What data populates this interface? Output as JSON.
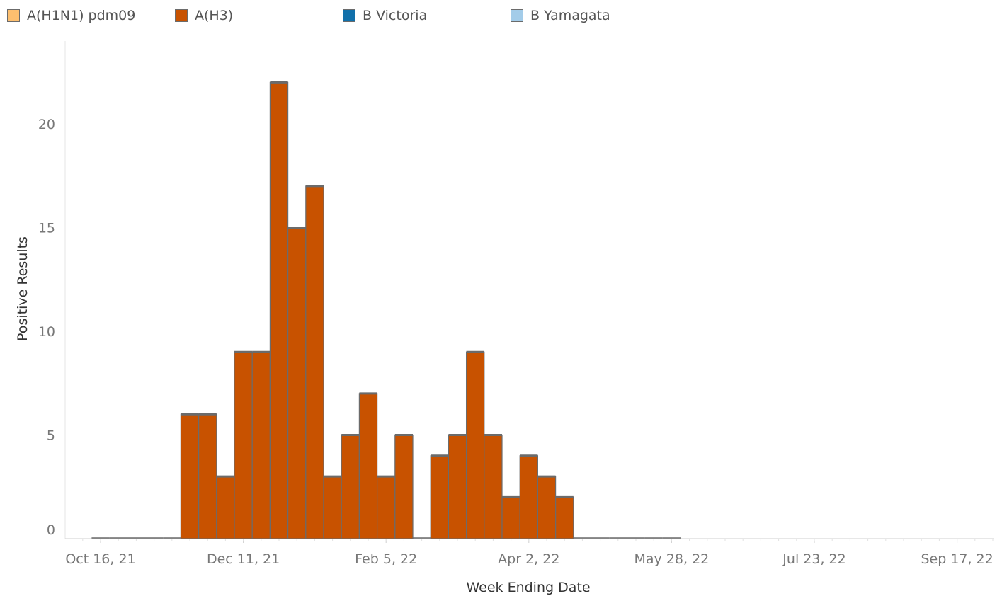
{
  "legend": [
    {
      "label": "A(H1N1) pdm09",
      "color": "#fdbf6f"
    },
    {
      "label": "A(H3)",
      "color": "#c85200"
    },
    {
      "label": "B Victoria",
      "color": "#1170aa"
    },
    {
      "label": "B Yamagata",
      "color": "#a3cce9"
    }
  ],
  "chart_data": {
    "type": "bar",
    "stacked": true,
    "xlabel": "Week Ending Date",
    "ylabel": "Positive Results",
    "ylim": [
      0,
      24
    ],
    "y_ticks": [
      0,
      5,
      10,
      15,
      20
    ],
    "x_tick_labels": [
      "Oct 16, 21",
      "Dec 11, 21",
      "Feb 5, 22",
      "Apr 2, 22",
      "May 28, 22",
      "Jul 23, 22",
      "Sep 17, 22"
    ],
    "x_ticks": [
      "2021-10-16",
      "2021-12-11",
      "2022-02-05",
      "2022-04-02",
      "2022-05-28",
      "2022-07-23",
      "2022-09-17"
    ],
    "x": [
      "2021-10-16",
      "2021-10-23",
      "2021-10-30",
      "2021-11-06",
      "2021-11-13",
      "2021-11-20",
      "2021-11-27",
      "2021-12-04",
      "2021-12-11",
      "2021-12-18",
      "2021-12-25",
      "2022-01-01",
      "2022-01-08",
      "2022-01-15",
      "2022-01-22",
      "2022-01-29",
      "2022-02-05",
      "2022-02-12",
      "2022-02-19",
      "2022-02-26",
      "2022-03-05",
      "2022-03-12",
      "2022-03-19",
      "2022-03-26",
      "2022-04-02",
      "2022-04-09",
      "2022-04-16",
      "2022-04-23",
      "2022-04-30",
      "2022-05-07",
      "2022-05-14",
      "2022-05-21",
      "2022-05-28"
    ],
    "series": [
      {
        "name": "A(H1N1) pdm09",
        "color": "#fdbf6f",
        "values": [
          0,
          0,
          0,
          0,
          0,
          0,
          0,
          0,
          0,
          0,
          0,
          0,
          0,
          0,
          0,
          0,
          0,
          0,
          0,
          0,
          0,
          0,
          0,
          0,
          0,
          0,
          0,
          0,
          0,
          0,
          0,
          0,
          0
        ]
      },
      {
        "name": "A(H3)",
        "color": "#c85200",
        "values": [
          0,
          0,
          0,
          0,
          0,
          6,
          6,
          3,
          9,
          9,
          22,
          15,
          17,
          3,
          5,
          7,
          3,
          5,
          0,
          4,
          5,
          9,
          5,
          2,
          4,
          3,
          2,
          0,
          0,
          0,
          0,
          0,
          0
        ]
      },
      {
        "name": "B Victoria",
        "color": "#1170aa",
        "values": [
          0,
          0,
          0,
          0,
          0,
          0,
          0,
          0,
          0,
          0,
          0,
          0,
          0,
          0,
          0,
          0,
          0,
          0,
          0,
          0,
          0,
          0,
          0,
          0,
          0,
          0,
          0,
          0,
          0,
          0,
          0,
          0,
          0
        ]
      },
      {
        "name": "B Yamagata",
        "color": "#a3cce9",
        "values": [
          0,
          0,
          0,
          0,
          0,
          0,
          0,
          0,
          0,
          0,
          0,
          0,
          0,
          0,
          0,
          0,
          0,
          0,
          0,
          0,
          0,
          0,
          0,
          0,
          0,
          0,
          0,
          0,
          0,
          0,
          0,
          0,
          0
        ]
      }
    ]
  }
}
